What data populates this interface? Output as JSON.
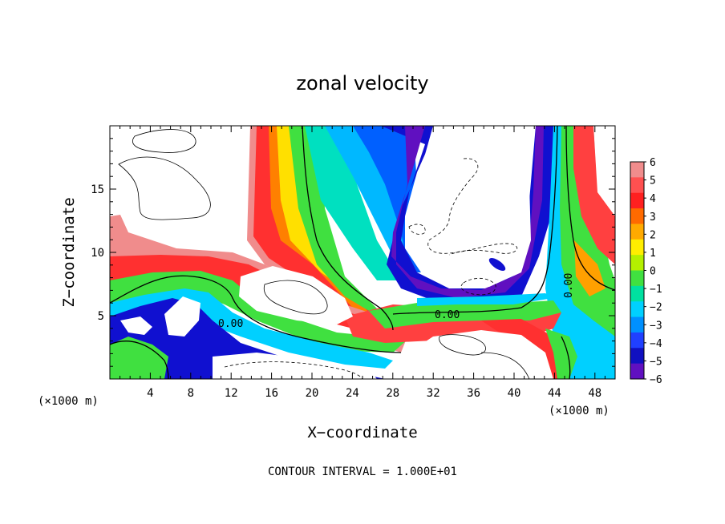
{
  "chart_data": {
    "type": "heatmap",
    "title": "zonal velocity",
    "xlabel": "X−coordinate",
    "ylabel": "Z−coordinate",
    "x_unit_left": "(×1000 m)",
    "x_unit_right": "(×1000 m)",
    "xlim": [
      0,
      50
    ],
    "ylim": [
      0,
      20
    ],
    "x_ticks": [
      4,
      8,
      12,
      16,
      20,
      24,
      28,
      32,
      36,
      40,
      44,
      48
    ],
    "y_ticks": [
      5,
      10,
      15
    ],
    "colorbar": {
      "ticks": [
        6,
        5,
        4,
        3,
        2,
        1,
        0,
        -1,
        -2,
        -3,
        -4,
        -5,
        -6
      ],
      "tick_labels": [
        "6",
        "5",
        "4",
        "3",
        "2",
        "1",
        "0",
        "−1",
        "−2",
        "−3",
        "−4",
        "−5",
        "−6"
      ],
      "colors": [
        "#f08c8c",
        "#ff5050",
        "#ff2020",
        "#ff6a00",
        "#ffaa00",
        "#ffee00",
        "#b4f000",
        "#40e040",
        "#00e0a0",
        "#00d0ff",
        "#0090ff",
        "#2040ff",
        "#1010c0",
        "#6010c0"
      ]
    },
    "contour_labels": [
      {
        "text": "0.00",
        "x": 15,
        "z": 4.3
      },
      {
        "text": "0.00",
        "x": 33.5,
        "z": 5.1
      },
      {
        "text": "0.00",
        "x": 45.5,
        "z": 7.5
      }
    ],
    "footer": "CONTOUR INTERVAL = 1.000E+01"
  }
}
